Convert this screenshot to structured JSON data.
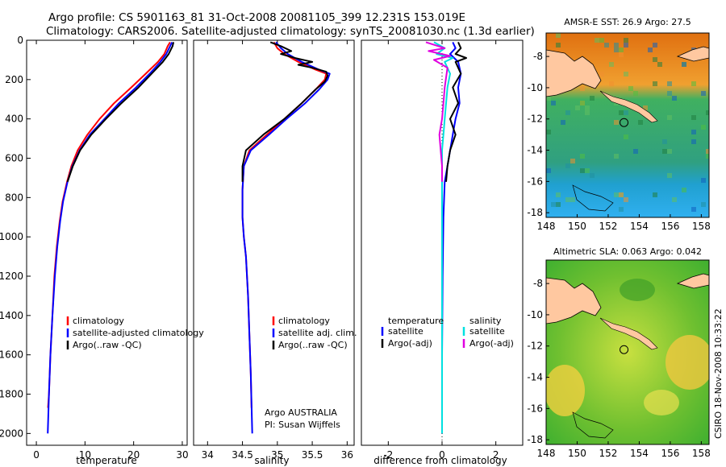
{
  "title_line1": "Argo profile: CS 5901163_81 31-Oct-2008 20081105_399 12.231S 153.019E",
  "title_line2": "Climatology: CARS2006. Satellite-adjusted climatology: synTS_20081030.nc (1.3d earlier)",
  "credit": "CSIRO 18-Nov-2008 10:33:22",
  "colors": {
    "climatology": "#ff0000",
    "satellite": "#0000ff",
    "argo": "#000000",
    "salinity_sat": "#00e0e0",
    "salinity_argo": "#e000e0",
    "land": "#ffc8a0"
  },
  "chart_data": [
    {
      "type": "line",
      "id": "temperature",
      "xlabel": "temperature",
      "ylabel": "",
      "xlim": [
        -2,
        31
      ],
      "ylim": [
        2060,
        0
      ],
      "xticks": [
        0,
        10,
        20,
        30
      ],
      "yticks": [
        0,
        200,
        400,
        600,
        800,
        1000,
        1200,
        1400,
        1600,
        1800,
        2000
      ],
      "legend": [
        "climatology",
        "satellite-adjusted climatology",
        "Argo(..raw -QC)"
      ],
      "series": [
        {
          "name": "climatology",
          "color": "#ff0000",
          "points": [
            [
              27.5,
              10
            ],
            [
              27,
              30
            ],
            [
              26.3,
              70
            ],
            [
              25,
              110
            ],
            [
              22.5,
              170
            ],
            [
              19.5,
              240
            ],
            [
              16,
              320
            ],
            [
              13,
              400
            ],
            [
              10.5,
              480
            ],
            [
              8.5,
              560
            ],
            [
              7.2,
              640
            ],
            [
              6.3,
              720
            ],
            [
              5.4,
              820
            ],
            [
              4.8,
              920
            ],
            [
              4.2,
              1050
            ],
            [
              3.7,
              1200
            ],
            [
              3.3,
              1400
            ],
            [
              2.9,
              1600
            ],
            [
              2.6,
              1800
            ],
            [
              2.4,
              1870
            ]
          ]
        },
        {
          "name": "satellite",
          "color": "#0000ff",
          "points": [
            [
              27.9,
              10
            ],
            [
              27.5,
              30
            ],
            [
              26.7,
              70
            ],
            [
              25.5,
              110
            ],
            [
              23.3,
              170
            ],
            [
              20.5,
              240
            ],
            [
              17,
              320
            ],
            [
              14,
              400
            ],
            [
              11,
              480
            ],
            [
              8.9,
              560
            ],
            [
              7.4,
              640
            ],
            [
              6.4,
              720
            ],
            [
              5.5,
              820
            ],
            [
              4.9,
              920
            ],
            [
              4.3,
              1050
            ],
            [
              3.8,
              1200
            ],
            [
              3.3,
              1400
            ],
            [
              2.9,
              1600
            ],
            [
              2.6,
              1800
            ],
            [
              2.35,
              2000
            ]
          ]
        },
        {
          "name": "argo",
          "color": "#000000",
          "points": [
            [
              28.2,
              10
            ],
            [
              28,
              30
            ],
            [
              27.2,
              70
            ],
            [
              26,
              110
            ],
            [
              23.7,
              170
            ],
            [
              21,
              240
            ],
            [
              17.5,
              320
            ],
            [
              14.3,
              400
            ],
            [
              11.3,
              480
            ],
            [
              9,
              560
            ],
            [
              7.5,
              640
            ],
            [
              6.4,
              720
            ]
          ]
        }
      ]
    },
    {
      "type": "line",
      "id": "salinity",
      "xlabel": "salinity",
      "ylabel": "",
      "xlim": [
        33.8,
        36.1
      ],
      "ylim": [
        2060,
        0
      ],
      "xticks": [
        34,
        34.5,
        35,
        35.5,
        36
      ],
      "yticks": [],
      "legend": [
        "climatology",
        "satellite adj. clim.",
        "Argo(..raw -QC)"
      ],
      "annotations": [
        "Argo AUSTRALIA",
        "PI: Susan Wijffels"
      ],
      "series": [
        {
          "name": "climatology",
          "color": "#ff0000",
          "points": [
            [
              34.95,
              10
            ],
            [
              35,
              40
            ],
            [
              35.1,
              70
            ],
            [
              35.3,
              110
            ],
            [
              35.55,
              150
            ],
            [
              35.7,
              170
            ],
            [
              35.68,
              200
            ],
            [
              35.55,
              250
            ],
            [
              35.35,
              320
            ],
            [
              35.1,
              400
            ],
            [
              34.85,
              480
            ],
            [
              34.6,
              560
            ],
            [
              34.52,
              640
            ],
            [
              34.5,
              760
            ],
            [
              34.5,
              900
            ],
            [
              34.52,
              1000
            ],
            [
              34.55,
              1100
            ],
            [
              34.58,
              1300
            ],
            [
              34.6,
              1500
            ],
            [
              34.62,
              1700
            ],
            [
              34.63,
              1870
            ]
          ]
        },
        {
          "name": "satellite",
          "color": "#0000ff",
          "points": [
            [
              34.98,
              10
            ],
            [
              35.05,
              40
            ],
            [
              35.15,
              70
            ],
            [
              35.35,
              110
            ],
            [
              35.6,
              150
            ],
            [
              35.75,
              170
            ],
            [
              35.72,
              200
            ],
            [
              35.6,
              250
            ],
            [
              35.4,
              320
            ],
            [
              35.13,
              400
            ],
            [
              34.88,
              480
            ],
            [
              34.62,
              560
            ],
            [
              34.52,
              640
            ],
            [
              34.5,
              760
            ],
            [
              34.5,
              900
            ],
            [
              34.52,
              1000
            ],
            [
              34.55,
              1100
            ],
            [
              34.58,
              1300
            ],
            [
              34.6,
              1500
            ],
            [
              34.62,
              1700
            ],
            [
              34.64,
              2000
            ]
          ]
        },
        {
          "name": "argo",
          "color": "#000000",
          "points": [
            [
              34.9,
              10
            ],
            [
              35.05,
              30
            ],
            [
              35.2,
              55
            ],
            [
              35.05,
              70
            ],
            [
              35.25,
              90
            ],
            [
              35.5,
              110
            ],
            [
              35.3,
              125
            ],
            [
              35.5,
              140
            ],
            [
              35.7,
              160
            ],
            [
              35.72,
              180
            ],
            [
              35.68,
              210
            ],
            [
              35.55,
              250
            ],
            [
              35.35,
              320
            ],
            [
              35.1,
              400
            ],
            [
              34.8,
              480
            ],
            [
              34.55,
              560
            ],
            [
              34.5,
              640
            ],
            [
              34.5,
              720
            ]
          ]
        }
      ]
    },
    {
      "type": "line",
      "id": "difference",
      "xlabel": "difference from climatology",
      "ylabel": "",
      "xlim": [
        -3,
        3
      ],
      "ylim": [
        2060,
        0
      ],
      "xticks": [
        -2,
        0,
        2
      ],
      "yticks": [],
      "legend": [
        "temperature",
        "satellite",
        "Argo(-adj)",
        "salinity",
        "satellite",
        "Argo(-adj)"
      ],
      "series": [
        {
          "name": "temperature satellite",
          "color": "#0000ff",
          "points": [
            [
              0.4,
              10
            ],
            [
              0.5,
              40
            ],
            [
              0.3,
              70
            ],
            [
              0.6,
              110
            ],
            [
              0.7,
              170
            ],
            [
              0.6,
              240
            ],
            [
              0.65,
              320
            ],
            [
              0.5,
              400
            ],
            [
              0.4,
              480
            ],
            [
              0.3,
              560
            ],
            [
              0.2,
              640
            ],
            [
              0.1,
              720
            ],
            [
              0.05,
              900
            ],
            [
              0.02,
              1200
            ],
            [
              0,
              1600
            ],
            [
              0,
              2000
            ]
          ]
        },
        {
          "name": "temperature argo",
          "color": "#000000",
          "points": [
            [
              0.6,
              10
            ],
            [
              0.7,
              40
            ],
            [
              0.5,
              70
            ],
            [
              0.9,
              90
            ],
            [
              0.5,
              110
            ],
            [
              0.7,
              170
            ],
            [
              0.4,
              240
            ],
            [
              0.6,
              320
            ],
            [
              0.3,
              400
            ],
            [
              0.5,
              480
            ],
            [
              0.3,
              560
            ],
            [
              0.2,
              640
            ],
            [
              0.15,
              720
            ]
          ]
        },
        {
          "name": "salinity satellite",
          "color": "#00e0e0",
          "points": [
            [
              -0.3,
              10
            ],
            [
              0.1,
              40
            ],
            [
              -0.2,
              70
            ],
            [
              0.4,
              90
            ],
            [
              0.1,
              110
            ],
            [
              0.3,
              170
            ],
            [
              0.2,
              240
            ],
            [
              0.15,
              320
            ],
            [
              0.1,
              400
            ],
            [
              0.05,
              480
            ],
            [
              0,
              560
            ],
            [
              0,
              640
            ],
            [
              0,
              900
            ],
            [
              0,
              1200
            ],
            [
              0,
              1600
            ],
            [
              0,
              2000
            ]
          ]
        },
        {
          "name": "salinity argo",
          "color": "#e000e0",
          "points": [
            [
              -0.6,
              10
            ],
            [
              0.1,
              40
            ],
            [
              -0.5,
              55
            ],
            [
              0.3,
              80
            ],
            [
              -0.3,
              100
            ],
            [
              0.2,
              140
            ],
            [
              0.1,
              240
            ],
            [
              0.05,
              320
            ],
            [
              0,
              400
            ],
            [
              -0.1,
              480
            ],
            [
              -0.05,
              560
            ],
            [
              0,
              640
            ],
            [
              0,
              720
            ]
          ]
        }
      ]
    }
  ],
  "maps": [
    {
      "id": "sst",
      "title": "AMSR-E SST: 26.9 Argo: 27.5",
      "xticks": [
        "148",
        "150",
        "152",
        "154",
        "156",
        "158"
      ],
      "yticks": [
        "-8",
        "-10",
        "-12",
        "-14",
        "-16",
        "-18"
      ],
      "xlim": [
        148,
        158.5
      ],
      "ylim": [
        -18.3,
        -6.5
      ],
      "marker": {
        "lon": 153.019,
        "lat": -12.231
      }
    },
    {
      "id": "sla",
      "title": "Altimetric SLA: 0.063 Argo: 0.042",
      "xticks": [
        "148",
        "150",
        "152",
        "154",
        "156",
        "158"
      ],
      "yticks": [
        "-8",
        "-10",
        "-12",
        "-14",
        "-16",
        "-18"
      ],
      "xlim": [
        148,
        158.5
      ],
      "ylim": [
        -18.3,
        -6.5
      ],
      "marker": {
        "lon": 153.019,
        "lat": -12.231
      }
    }
  ]
}
